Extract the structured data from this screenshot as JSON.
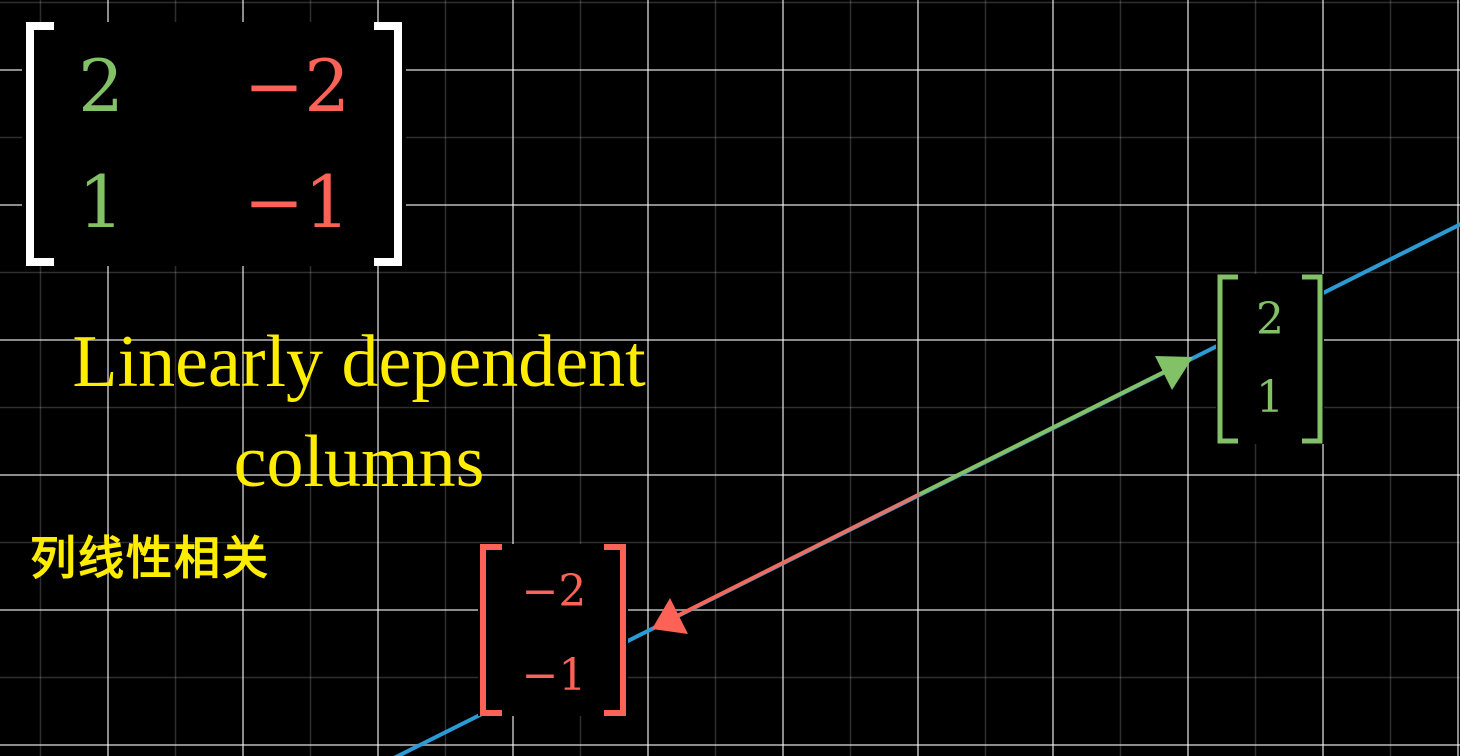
{
  "colors": {
    "background": "#000000",
    "grid": "#ffffff",
    "span_line": "#2a9bd4",
    "col1": "#83c167",
    "col2": "#fc6255",
    "caption": "#ffed00",
    "bracket_matrix": "#ffffff"
  },
  "matrix": {
    "rows": [
      {
        "c1": "2",
        "c2": "−2"
      },
      {
        "c1": "1",
        "c2": "−1"
      }
    ]
  },
  "vector_green": {
    "top": "2",
    "bottom": "1"
  },
  "vector_red": {
    "top": "−2",
    "bottom": "−1"
  },
  "caption": {
    "line1": "Linearly dependent",
    "line2": "columns",
    "chinese": "列线性相关"
  }
}
